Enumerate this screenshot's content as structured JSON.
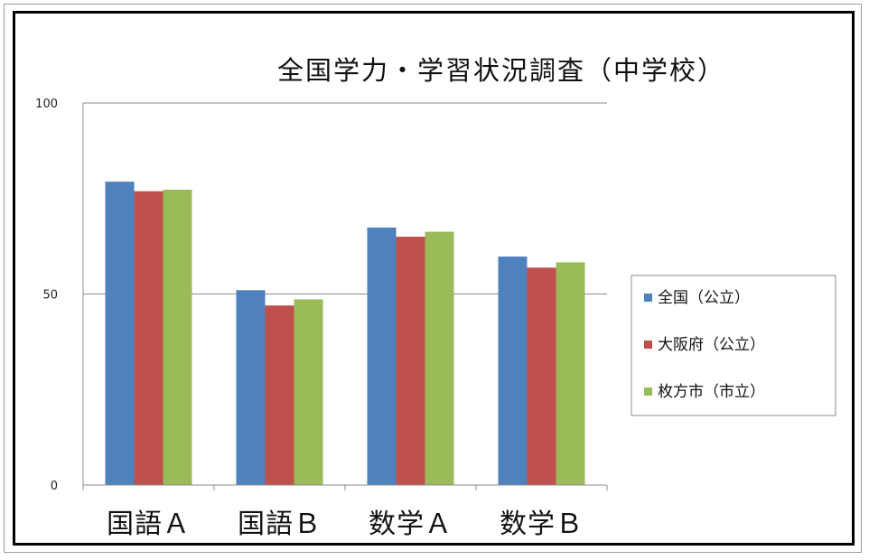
{
  "chart_data": {
    "type": "bar",
    "title": "全国学力・学習状況調査（中学校）",
    "categories": [
      "国語Ａ",
      "国語Ｂ",
      "数学Ａ",
      "数学Ｂ"
    ],
    "series": [
      {
        "name": "全国（公立）",
        "color": "#4F81BD",
        "values": [
          79.4,
          51.0,
          67.4,
          59.8
        ]
      },
      {
        "name": "大阪府（公立）",
        "color": "#C0504D",
        "values": [
          76.9,
          47.0,
          65.0,
          56.9
        ]
      },
      {
        "name": "枚方市（市立）",
        "color": "#9BBB59",
        "values": [
          77.3,
          48.6,
          66.3,
          58.3
        ]
      }
    ],
    "yticks": [
      0,
      50,
      100
    ],
    "ylim": [
      0,
      100
    ],
    "grid": true,
    "legend_position": "right"
  }
}
